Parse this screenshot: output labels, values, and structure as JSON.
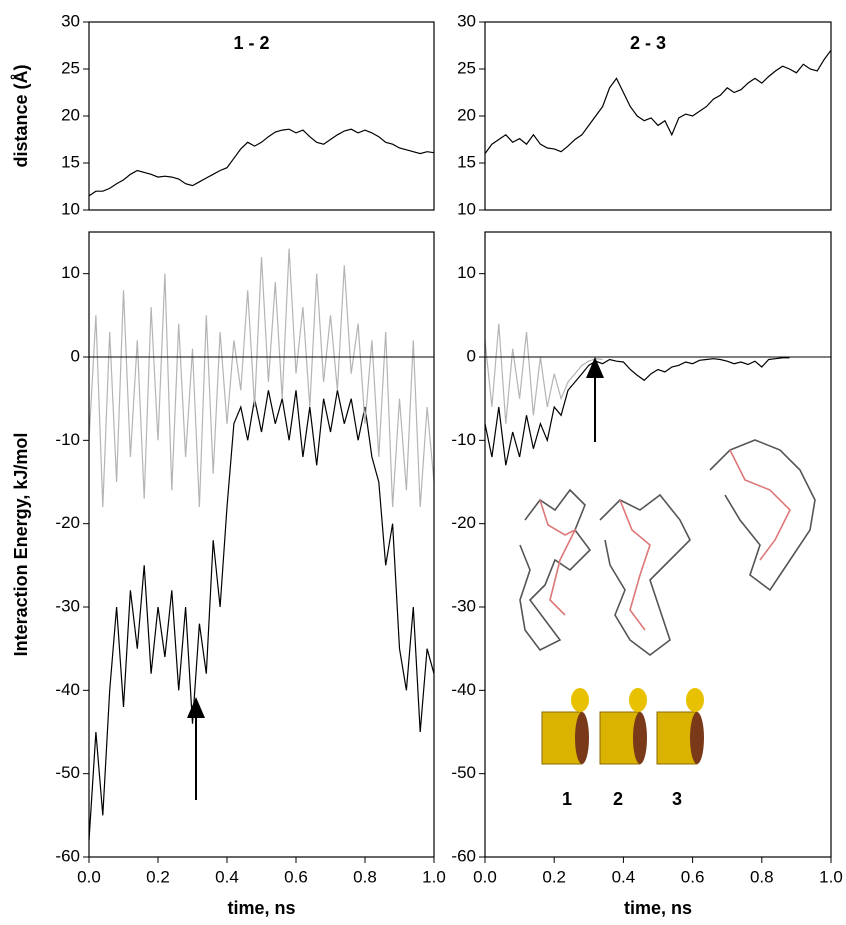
{
  "chart_data": [
    {
      "type": "line",
      "title": "1 - 2",
      "ylabel": "distance (Å)",
      "x": [
        0,
        0.02,
        0.04,
        0.06,
        0.08,
        0.1,
        0.12,
        0.14,
        0.16,
        0.18,
        0.2,
        0.22,
        0.24,
        0.26,
        0.28,
        0.3,
        0.32,
        0.34,
        0.36,
        0.38,
        0.4,
        0.42,
        0.44,
        0.46,
        0.48,
        0.5,
        0.52,
        0.54,
        0.56,
        0.58,
        0.6,
        0.62,
        0.64,
        0.66,
        0.68,
        0.7,
        0.72,
        0.74,
        0.76,
        0.78,
        0.8,
        0.82,
        0.84,
        0.86,
        0.88,
        0.9,
        0.92,
        0.94,
        0.96,
        0.98,
        1
      ],
      "series": [
        {
          "color": "#000000",
          "values": [
            11.5,
            12,
            12,
            12.3,
            12.8,
            13.2,
            13.8,
            14.2,
            14,
            13.8,
            13.5,
            13.6,
            13.5,
            13.3,
            12.8,
            12.6,
            13,
            13.4,
            13.8,
            14.2,
            14.5,
            15.5,
            16.5,
            17.2,
            16.8,
            17.2,
            17.8,
            18.3,
            18.5,
            18.6,
            18.2,
            18.5,
            17.8,
            17.2,
            17,
            17.5,
            18,
            18.4,
            18.6,
            18.2,
            18.5,
            18.2,
            17.8,
            17.2,
            17,
            16.6,
            16.4,
            16.2,
            16,
            16.2,
            16.1
          ]
        }
      ],
      "xlim": [
        0,
        1
      ],
      "ylim": [
        10,
        30
      ],
      "yticks": [
        10,
        15,
        20,
        25,
        30
      ]
    },
    {
      "type": "line",
      "title": "2 - 3",
      "x": [
        0,
        0.02,
        0.04,
        0.06,
        0.08,
        0.1,
        0.12,
        0.14,
        0.16,
        0.18,
        0.2,
        0.22,
        0.24,
        0.26,
        0.28,
        0.3,
        0.32,
        0.34,
        0.36,
        0.38,
        0.4,
        0.42,
        0.44,
        0.46,
        0.48,
        0.5,
        0.52,
        0.54,
        0.56,
        0.58,
        0.6,
        0.62,
        0.64,
        0.66,
        0.68,
        0.7,
        0.72,
        0.74,
        0.76,
        0.78,
        0.8,
        0.82,
        0.84,
        0.86,
        0.88,
        0.9,
        0.92,
        0.94,
        0.96,
        0.98,
        1
      ],
      "series": [
        {
          "color": "#000000",
          "values": [
            16,
            17,
            17.5,
            18,
            17.2,
            17.6,
            17,
            18,
            17,
            16.6,
            16.5,
            16.2,
            16.8,
            17.5,
            18,
            19,
            20,
            21,
            23,
            24,
            22.5,
            21,
            20,
            19.5,
            19.8,
            19,
            19.5,
            18,
            19.8,
            20.2,
            20,
            20.5,
            21,
            21.8,
            22.2,
            23,
            22.5,
            22.8,
            23.5,
            24,
            23.5,
            24.2,
            24.8,
            25.3,
            25,
            24.6,
            25.5,
            25,
            24.8,
            26,
            27
          ]
        }
      ],
      "xlim": [
        0,
        1
      ],
      "ylim": [
        10,
        30
      ],
      "yticks": [
        10,
        15,
        20,
        25,
        30
      ]
    },
    {
      "type": "line",
      "ylabel": "Interaction Energy, kJ/mol",
      "xlabel": "time, ns",
      "zero_line": true,
      "x": [
        0,
        0.02,
        0.04,
        0.06,
        0.08,
        0.1,
        0.12,
        0.14,
        0.16,
        0.18,
        0.2,
        0.22,
        0.24,
        0.26,
        0.28,
        0.3,
        0.32,
        0.34,
        0.36,
        0.38,
        0.4,
        0.42,
        0.44,
        0.46,
        0.48,
        0.5,
        0.52,
        0.54,
        0.56,
        0.58,
        0.6,
        0.62,
        0.64,
        0.66,
        0.68,
        0.7,
        0.72,
        0.74,
        0.76,
        0.78,
        0.8,
        0.82,
        0.84,
        0.86,
        0.88,
        0.9,
        0.92,
        0.94,
        0.96,
        0.98,
        1
      ],
      "series": [
        {
          "color": "#000000",
          "values": [
            -58,
            -45,
            -55,
            -40,
            -30,
            -42,
            -28,
            -35,
            -25,
            -38,
            -30,
            -36,
            -28,
            -40,
            -30,
            -44,
            -32,
            -38,
            -22,
            -30,
            -18,
            -8,
            -6,
            -10,
            -5,
            -9,
            -4,
            -8,
            -5,
            -10,
            -4,
            -12,
            -6,
            -13,
            -5,
            -9,
            -4,
            -8,
            -5,
            -10,
            -6,
            -12,
            -15,
            -25,
            -20,
            -35,
            -40,
            -30,
            -45,
            -35,
            -38
          ]
        },
        {
          "color": "#b4b4b4",
          "values": [
            -10,
            5,
            -18,
            3,
            -15,
            8,
            -12,
            2,
            -17,
            6,
            -10,
            10,
            -16,
            4,
            -12,
            1,
            -18,
            5,
            -14,
            3,
            -8,
            2,
            -4,
            8,
            -6,
            12,
            -3,
            9,
            -5,
            13,
            -2,
            6,
            -6,
            10,
            -3,
            5,
            -4,
            11,
            -2,
            4,
            -8,
            2,
            -12,
            3,
            -18,
            -5,
            -16,
            2,
            -18,
            -6,
            -15
          ]
        }
      ],
      "xlim": [
        0,
        1
      ],
      "ylim": [
        -60,
        15
      ],
      "yticks": [
        -60,
        -50,
        -40,
        -30,
        -20,
        -10,
        0,
        10
      ],
      "xticks": [
        {
          "value": 0,
          "label": "0.0"
        },
        0.2,
        0.4,
        0.6,
        0.8,
        {
          "value": 1,
          "label": "1.0"
        }
      ]
    },
    {
      "type": "line",
      "xlabel": "time, ns",
      "zero_line": true,
      "annotations": [
        "1",
        "2",
        "3"
      ],
      "x": [
        0,
        0.02,
        0.04,
        0.06,
        0.08,
        0.1,
        0.12,
        0.14,
        0.16,
        0.18,
        0.2,
        0.22,
        0.24,
        0.26,
        0.28,
        0.3,
        0.32,
        0.34,
        0.36,
        0.38,
        0.4,
        0.42,
        0.44,
        0.46,
        0.48,
        0.5,
        0.52,
        0.54,
        0.56,
        0.58,
        0.6,
        0.62,
        0.64,
        0.66,
        0.68,
        0.7,
        0.72,
        0.74,
        0.76,
        0.78,
        0.8,
        0.82,
        0.84,
        0.86,
        0.88,
        0.9,
        0.92,
        0.94,
        0.96,
        0.98,
        1
      ],
      "series": [
        {
          "color": "#000000",
          "values": [
            -8,
            -12,
            -6,
            -13,
            -9,
            -12,
            -7,
            -11,
            -8,
            -10,
            -6,
            -7,
            -4,
            -3,
            -2,
            -1,
            -0.5,
            -0.8,
            -0.3,
            -0.5,
            -0.6,
            -1.5,
            -2.2,
            -2.8,
            -2,
            -1.5,
            -1.8,
            -1.2,
            -1,
            -0.6,
            -0.8,
            -0.4,
            -0.3,
            -0.2,
            -0.3,
            -0.5,
            -0.8,
            -0.6,
            -0.9,
            -0.5,
            -1.2,
            -0.3,
            -0.2,
            -0.1,
            -0.1,
            null,
            null,
            null,
            null,
            null,
            null
          ]
        },
        {
          "color": "#b4b4b4",
          "values": [
            2,
            -6,
            4,
            -8,
            1,
            -5,
            3,
            -7,
            0,
            -6,
            -2,
            -5,
            -3,
            -2,
            -1,
            -0.5,
            -0.2,
            -0.3,
            null,
            null,
            null,
            null,
            null,
            null,
            null,
            null,
            null,
            null,
            null,
            null,
            null,
            null,
            null,
            null,
            null,
            null,
            null,
            null,
            null,
            null,
            null,
            null,
            null,
            null,
            null,
            null,
            null,
            null,
            null,
            null,
            null
          ]
        }
      ],
      "xlim": [
        0,
        1
      ],
      "ylim": [
        -60,
        15
      ],
      "yticks": [
        -60,
        -50,
        -40,
        -30,
        -20,
        -10,
        0,
        10
      ],
      "xticks": [
        {
          "value": 0,
          "label": "0.0"
        },
        0.2,
        0.4,
        0.6,
        0.8,
        {
          "value": 1,
          "label": "1.0"
        }
      ]
    }
  ]
}
